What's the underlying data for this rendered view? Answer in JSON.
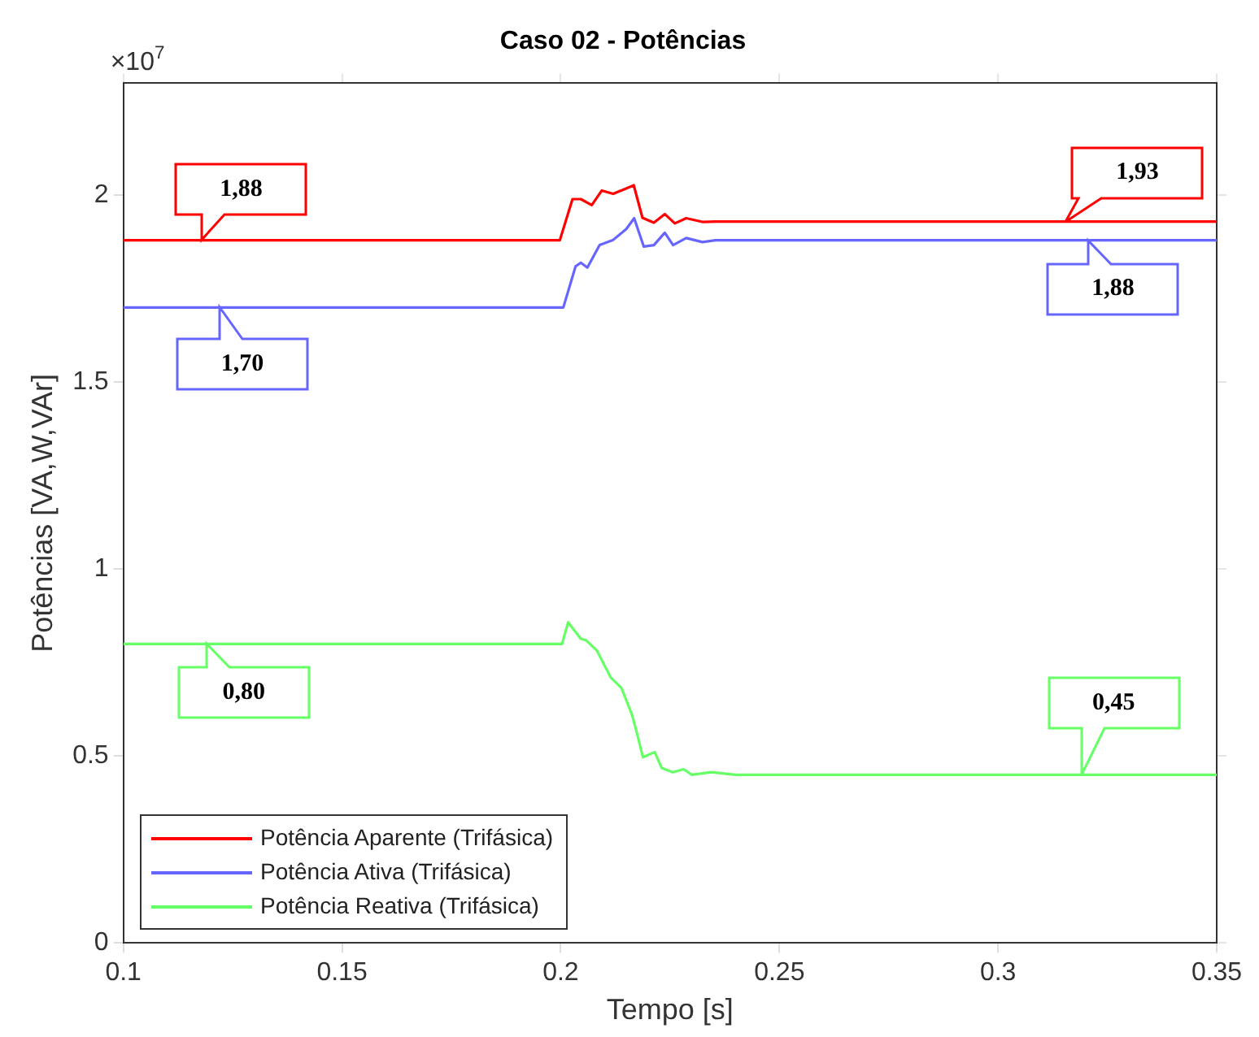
{
  "chart_data": {
    "type": "line",
    "title": "Caso 02 - Potências",
    "xlabel": "Tempo [s]",
    "ylabel": "Potências [VA,W,VAr]",
    "xlim": [
      0.1,
      0.35
    ],
    "xticks": [
      0.1,
      0.15,
      0.2,
      0.25,
      0.3,
      0.35
    ],
    "ylim": [
      0,
      2.3
    ],
    "yticks": [
      0,
      0.5,
      1,
      1.5,
      2
    ],
    "grid": false,
    "legend": "bottom left",
    "marker": "none",
    "line_style": "solid",
    "series": [
      {
        "name": "Potência Aparente (Trifásica)",
        "color": "#ff0000",
        "x": [
          0.1,
          0.1998,
          0.2027,
          0.2046,
          0.2071,
          0.2094,
          0.212,
          0.2167,
          0.2187,
          0.2213,
          0.2238,
          0.2261,
          0.2287,
          0.2324,
          0.2354,
          0.35
        ],
        "values": [
          1.88,
          1.88,
          1.99,
          1.99,
          1.974,
          2.013,
          2.004,
          2.027,
          1.94,
          1.927,
          1.95,
          1.925,
          1.939,
          1.929,
          1.93,
          1.93
        ]
      },
      {
        "name": "Potência Ativa (Trifásica)",
        "color": "#6666ff",
        "x": [
          0.1,
          0.2006,
          0.2034,
          0.2046,
          0.2061,
          0.2089,
          0.212,
          0.215,
          0.2168,
          0.219,
          0.2213,
          0.2238,
          0.2257,
          0.2287,
          0.2324,
          0.2354,
          0.35
        ],
        "values": [
          1.7,
          1.7,
          1.81,
          1.82,
          1.807,
          1.867,
          1.881,
          1.91,
          1.939,
          1.863,
          1.867,
          1.9,
          1.867,
          1.886,
          1.875,
          1.88,
          1.88
        ]
      },
      {
        "name": "Potência Reativa (Trifásica)",
        "color": "#66ff66",
        "x": [
          0.1,
          0.2003,
          0.2017,
          0.2046,
          0.2058,
          0.2083,
          0.2114,
          0.2139,
          0.2163,
          0.2176,
          0.2188,
          0.2215,
          0.2231,
          0.2256,
          0.2281,
          0.23,
          0.2344,
          0.24,
          0.35
        ],
        "values": [
          0.8,
          0.8,
          0.858,
          0.814,
          0.81,
          0.782,
          0.711,
          0.682,
          0.611,
          0.554,
          0.497,
          0.511,
          0.468,
          0.457,
          0.465,
          0.45,
          0.457,
          0.45,
          0.45
        ]
      }
    ],
    "annotations": [
      "×10$^{7}$",
      {
        "text": "1,88",
        "x": 0.118,
        "y": 1.88
      },
      {
        "text": "1,93",
        "x": 0.3155,
        "y": 1.93
      },
      {
        "text": "1,70",
        "x": 0.122,
        "y": 1.7
      },
      {
        "text": "1,88",
        "x": 0.3207,
        "y": 1.88
      },
      {
        "text": "0,80",
        "x": 0.119,
        "y": 0.8
      },
      {
        "text": "0,45",
        "x": 0.319,
        "y": 0.45
      }
    ]
  }
}
